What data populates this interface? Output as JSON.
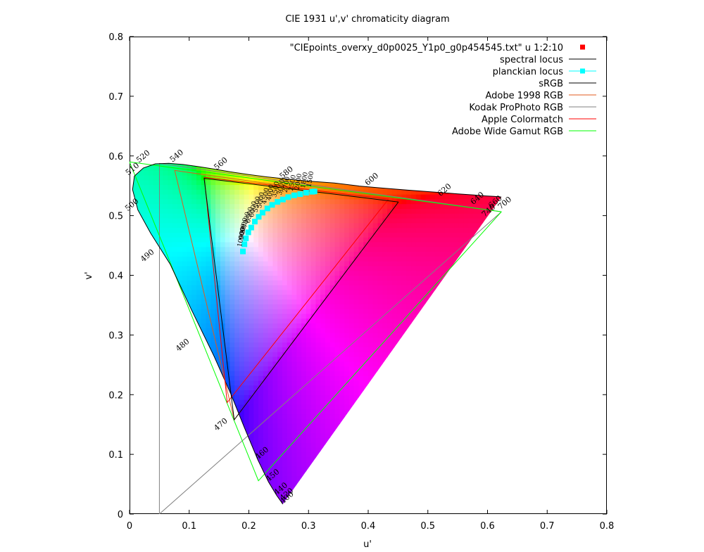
{
  "chart_data": {
    "type": "scatter",
    "title": "CIE 1931 u',v' chromaticity diagram",
    "xlabel": "u'",
    "ylabel": "v'",
    "xlim": [
      0,
      0.8
    ],
    "ylim": [
      0,
      0.8
    ],
    "xticks": [
      "0",
      "0.1",
      "0.2",
      "0.3",
      "0.4",
      "0.5",
      "0.6",
      "0.7",
      "0.8"
    ],
    "yticks": [
      "0",
      "0.1",
      "0.2",
      "0.3",
      "0.4",
      "0.5",
      "0.6",
      "0.7",
      "0.8"
    ],
    "legend_position": "top-right",
    "grid": false,
    "series": [
      {
        "name": "\"CIEpoints_overxy_d0p0025_Y1p0_g0p454545.txt\" u 1:2:10",
        "kind": "points",
        "color": "#ff0000",
        "marker": "square"
      },
      {
        "name": "spectral locus",
        "kind": "line",
        "color": "#000000",
        "points": [
          [
            0.2568,
            0.0165
          ],
          [
            0.2564,
            0.0172
          ],
          [
            0.2545,
            0.02
          ],
          [
            0.2466,
            0.0312
          ],
          [
            0.2329,
            0.0538
          ],
          [
            0.215,
            0.0909
          ],
          [
            0.1923,
            0.1453
          ],
          [
            0.17,
            0.2007
          ],
          [
            0.1413,
            0.2651
          ],
          [
            0.1031,
            0.3437
          ],
          [
            0.0681,
            0.4187
          ],
          [
            0.0354,
            0.4706
          ],
          [
            0.0139,
            0.5096
          ],
          [
            0.0051,
            0.5436
          ],
          [
            0.0082,
            0.5663
          ],
          [
            0.0231,
            0.5798
          ],
          [
            0.0432,
            0.5867
          ],
          [
            0.0658,
            0.5876
          ],
          [
            0.0897,
            0.5857
          ],
          [
            0.1149,
            0.5822
          ],
          [
            0.1414,
            0.578
          ],
          [
            0.169,
            0.5733
          ],
          [
            0.1987,
            0.5689
          ],
          [
            0.2305,
            0.5648
          ],
          [
            0.2647,
            0.5611
          ],
          [
            0.3025,
            0.5575
          ],
          [
            0.3433,
            0.5547
          ],
          [
            0.3851,
            0.5495
          ],
          [
            0.4279,
            0.5458
          ],
          [
            0.4665,
            0.5427
          ],
          [
            0.4964,
            0.5404
          ],
          [
            0.5241,
            0.5384
          ],
          [
            0.5507,
            0.5364
          ],
          [
            0.5767,
            0.5345
          ],
          [
            0.5967,
            0.533
          ],
          [
            0.6108,
            0.5322
          ],
          [
            0.6183,
            0.5316
          ],
          [
            0.6231,
            0.5311
          ],
          [
            0.6231,
            0.5311
          ]
        ]
      },
      {
        "name": "planckian locus",
        "kind": "linespoints",
        "color": "#00ffff",
        "marker": "square",
        "points": [
          [
            0.19,
            0.44
          ],
          [
            0.1925,
            0.452
          ],
          [
            0.195,
            0.462
          ],
          [
            0.199,
            0.472
          ],
          [
            0.204,
            0.48
          ],
          [
            0.21,
            0.49
          ],
          [
            0.2165,
            0.498
          ],
          [
            0.223,
            0.505
          ],
          [
            0.231,
            0.512
          ],
          [
            0.239,
            0.518
          ],
          [
            0.248,
            0.523
          ],
          [
            0.257,
            0.527
          ],
          [
            0.266,
            0.531
          ],
          [
            0.276,
            0.534
          ],
          [
            0.286,
            0.536
          ],
          [
            0.296,
            0.5385
          ],
          [
            0.306,
            0.54
          ],
          [
            0.31,
            0.5405
          ]
        ]
      },
      {
        "name": "sRGB",
        "kind": "polygon",
        "color": "#000000",
        "points": [
          [
            0.4507,
            0.5229
          ],
          [
            0.125,
            0.5625
          ],
          [
            0.1754,
            0.1579
          ],
          [
            0.4507,
            0.5229
          ]
        ]
      },
      {
        "name": "Adobe 1998 RGB",
        "kind": "polygon",
        "color": "#e05a1e",
        "points": [
          [
            0.4507,
            0.5229
          ],
          [
            0.0757,
            0.5757
          ],
          [
            0.1754,
            0.1579
          ],
          [
            0.4507,
            0.5229
          ]
        ]
      },
      {
        "name": "Kodak ProPhoto RGB",
        "kind": "polygon",
        "color": "#808080",
        "points": [
          [
            0.6234,
            0.5065
          ],
          [
            0.0501,
            0.5874
          ],
          [
            0.05,
            0.0
          ],
          [
            0.6234,
            0.5065
          ]
        ]
      },
      {
        "name": "Apple Colormatch",
        "kind": "polygon",
        "color": "#ff0000",
        "points": [
          [
            0.4341,
            0.5276
          ],
          [
            0.1252,
            0.5643
          ],
          [
            0.1637,
            0.1867
          ],
          [
            0.4341,
            0.5276
          ]
        ]
      },
      {
        "name": "Adobe Wide Gamut RGB",
        "kind": "polygon",
        "color": "#00ff00",
        "points": [
          [
            0.6234,
            0.5065
          ],
          [
            0.0,
            0.5899
          ],
          [
            0.216,
            0.0557
          ],
          [
            0.6234,
            0.5065
          ]
        ]
      }
    ],
    "wavelength_labels": [
      {
        "text": "400",
        "x": 0.2568,
        "y": 0.0165
      },
      {
        "text": "420",
        "x": 0.2564,
        "y": 0.022
      },
      {
        "text": "440",
        "x": 0.2466,
        "y": 0.0312
      },
      {
        "text": "450",
        "x": 0.2329,
        "y": 0.0538
      },
      {
        "text": "460",
        "x": 0.215,
        "y": 0.0909
      },
      {
        "text": "470",
        "x": 0.146,
        "y": 0.139
      },
      {
        "text": "480",
        "x": 0.082,
        "y": 0.272
      },
      {
        "text": "490",
        "x": 0.023,
        "y": 0.422
      },
      {
        "text": "500",
        "x": -0.003,
        "y": 0.507
      },
      {
        "text": "510",
        "x": -0.002,
        "y": 0.567
      },
      {
        "text": "520",
        "x": 0.016,
        "y": 0.588
      },
      {
        "text": "540",
        "x": 0.072,
        "y": 0.589
      },
      {
        "text": "560",
        "x": 0.146,
        "y": 0.576
      },
      {
        "text": "580",
        "x": 0.256,
        "y": 0.561
      },
      {
        "text": "600",
        "x": 0.399,
        "y": 0.55
      },
      {
        "text": "620",
        "x": 0.521,
        "y": 0.532
      },
      {
        "text": "640",
        "x": 0.576,
        "y": 0.518
      },
      {
        "text": "660",
        "x": 0.606,
        "y": 0.512
      },
      {
        "text": "700",
        "x": 0.622,
        "y": 0.51
      },
      {
        "text": "740",
        "x": 0.595,
        "y": 0.497
      }
    ]
  }
}
